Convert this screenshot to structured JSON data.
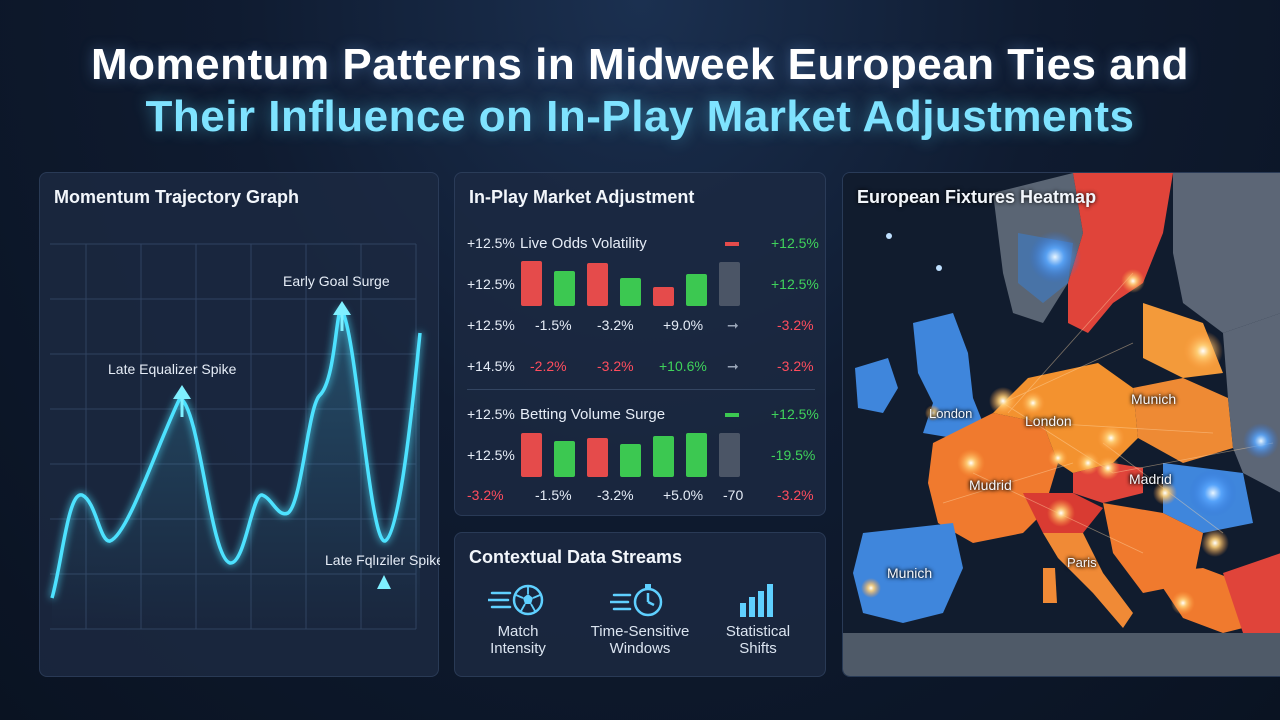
{
  "title": {
    "line1": "Momentum Patterns in Midweek European Ties and",
    "line2": "Their Influence on In-Play Market Adjustments"
  },
  "momentum": {
    "title": "Momentum Trajectory Graph",
    "annotations": {
      "early_goal": "Early Goal Surge",
      "late_equalizer": "Late Equalizer Spike",
      "late_equalizer_2": "Late Fqlıziler Spike"
    }
  },
  "market": {
    "title": "In-Play Market Adjustment",
    "live_odds": {
      "left": "+12.5%",
      "label": "Live Odds Volatility",
      "right": "+12.5%",
      "bar_row_left": "+12.5%",
      "bar_row_right": "+12.5%",
      "row3": [
        "+12.5%",
        "-1.5%",
        "-3.2%",
        "+9.0%",
        "-3.2%"
      ],
      "row4": [
        "+14.5%",
        "-2.2%",
        "-3.2%",
        "+10.6%",
        "-3.2%"
      ],
      "bars": [
        {
          "color": "red",
          "level": 1.0
        },
        {
          "color": "green",
          "level": 0.78
        },
        {
          "color": "red",
          "level": 0.95
        },
        {
          "color": "green",
          "level": 0.62
        },
        {
          "color": "red",
          "level": 0.42
        },
        {
          "color": "green",
          "level": 0.72
        },
        {
          "color": "gray",
          "level": 0.98
        }
      ]
    },
    "betting_volume": {
      "left": "+12.5%",
      "label": "Betting Volume Surge",
      "right": "+12.5%",
      "bar_row_left": "+12.5%",
      "bar_row_right": "-19.5%",
      "row3": [
        "-3.2%",
        "-1.5%",
        "-3.2%",
        "+5.0%",
        "-70",
        "-3.2%"
      ],
      "bars": [
        {
          "color": "red",
          "level": 0.98
        },
        {
          "color": "green",
          "level": 0.8
        },
        {
          "color": "red",
          "level": 0.86
        },
        {
          "color": "green",
          "level": 0.74
        },
        {
          "color": "green",
          "level": 0.9
        },
        {
          "color": "green",
          "level": 0.97
        },
        {
          "color": "gray",
          "level": 0.98
        }
      ]
    },
    "colors": {
      "red": "#e54b4b",
      "green": "#3cc851",
      "gray": "#4b5566"
    }
  },
  "context": {
    "title": "Contextual Data Streams",
    "streams": [
      {
        "icon": "soccer-ball-icon",
        "label1": "Match",
        "label2": "Intensity"
      },
      {
        "icon": "stopwatch-icon",
        "label1": "Time-Sensitive",
        "label2": "Windows"
      },
      {
        "icon": "bar-chart-icon",
        "label1": "Statistical",
        "label2": "Shifts"
      }
    ]
  },
  "heatmap": {
    "title": "European Fixtures Heatmap",
    "cities": [
      "London",
      "London",
      "Munich",
      "Mudrid",
      "Madrid",
      "Paris",
      "Munich"
    ]
  }
}
